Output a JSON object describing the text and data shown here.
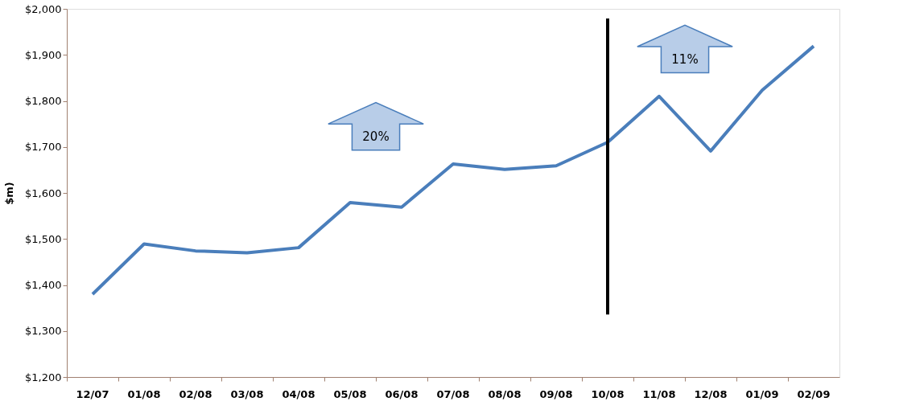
{
  "chart_data": {
    "type": "line",
    "ylabel": "$m)",
    "categories": [
      "12/07",
      "01/08",
      "02/08",
      "03/08",
      "04/08",
      "05/08",
      "06/08",
      "07/08",
      "08/08",
      "09/08",
      "10/08",
      "11/08",
      "12/08",
      "01/09",
      "02/09"
    ],
    "series": [
      {
        "color": "#4a7ebb",
        "values": [
          1380,
          1489,
          1474,
          1470,
          1481,
          1579,
          1569,
          1663,
          1651,
          1659,
          1710,
          1810,
          1691,
          1823,
          1919
        ]
      }
    ],
    "ylim": [
      1200,
      2000
    ],
    "yticks": [
      {
        "value": 1200,
        "label": "$1,200"
      },
      {
        "value": 1300,
        "label": "$1,300"
      },
      {
        "value": 1400,
        "label": "$1,400"
      },
      {
        "value": 1500,
        "label": "$1,500"
      },
      {
        "value": 1600,
        "label": "$1,600"
      },
      {
        "value": 1700,
        "label": "$1,700"
      },
      {
        "value": 1800,
        "label": "$1,800"
      },
      {
        "value": 1900,
        "label": "$1,900"
      },
      {
        "value": 2000,
        "label": "$2,000"
      }
    ],
    "ref_lines": [
      {
        "axis": "x",
        "value": "10/08",
        "color": "#000000"
      }
    ],
    "annotations": [
      "20%",
      "11%"
    ],
    "grid": false,
    "marker": "none",
    "line_style": "solid"
  }
}
